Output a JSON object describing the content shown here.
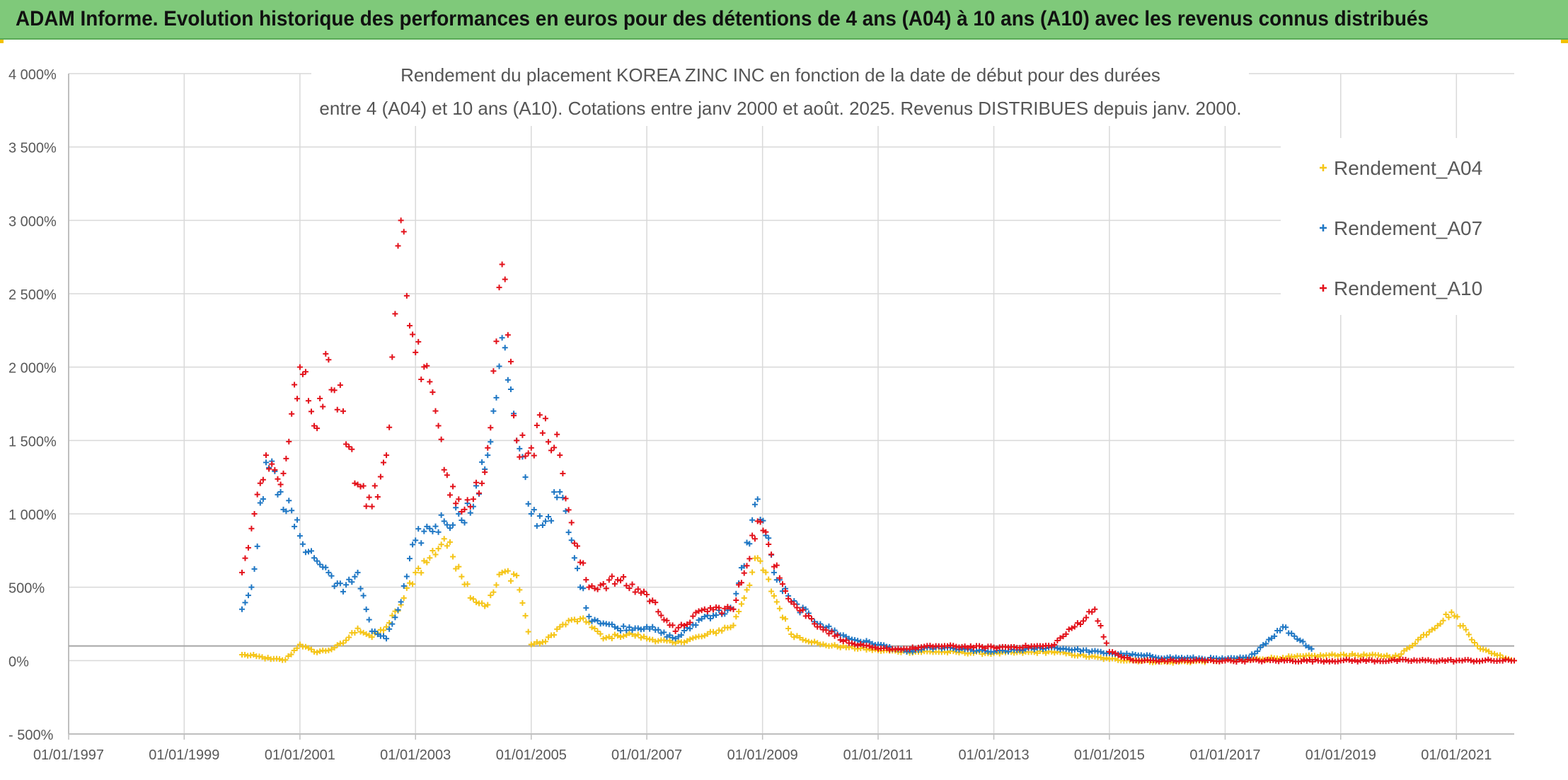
{
  "banner": {
    "title": "ADAM Informe. Evolution historique des performances en euros pour des détentions de 4 ans (A04) à 10 ans (A10) avec les revenus connus distribués"
  },
  "colors": {
    "banner_bg": "#7fc97a",
    "A04": "#f5c518",
    "A07": "#1f77c4",
    "A10": "#e3121b",
    "grid": "#d9d9d9"
  },
  "chart_data": {
    "type": "scatter",
    "title_lines": [
      "Rendement du placement KOREA ZINC INC en fonction de la date de début pour des durées",
      "entre 4 (A04) et 10 ans (A10). Cotations entre janv 2000 et août. 2025. Revenus DISTRIBUES depuis janv. 2000."
    ],
    "xlabel": "",
    "ylabel": "",
    "x_range": [
      "1997-01-01",
      "2022-01-01"
    ],
    "ylim": [
      -500,
      4000
    ],
    "y_ticks": [
      -500,
      0,
      500,
      1000,
      1500,
      2000,
      2500,
      3000,
      3500,
      4000
    ],
    "y_tick_labels": [
      "- 500%",
      "0%",
      "500%",
      "1 000%",
      "1 500%",
      "2 000%",
      "2 500%",
      "3 000%",
      "3 500%",
      "4 000%"
    ],
    "x_ticks": [
      "1997-01-01",
      "1999-01-01",
      "2001-01-01",
      "2003-01-01",
      "2005-01-01",
      "2007-01-01",
      "2009-01-01",
      "2011-01-01",
      "2013-01-01",
      "2015-01-01",
      "2017-01-01",
      "2019-01-01",
      "2021-01-01"
    ],
    "x_tick_labels": [
      "01/01/1997",
      "01/01/1999",
      "01/01/2001",
      "01/01/2003",
      "01/01/2005",
      "01/01/2007",
      "01/01/2009",
      "01/01/2011",
      "01/01/2013",
      "01/01/2015",
      "01/01/2017",
      "01/01/2019",
      "01/01/2021"
    ],
    "reference_line": 100,
    "grid": true,
    "marker": "+",
    "legend_position": "top-right",
    "series": [
      {
        "name": "Rendement_A04",
        "color": "#f5c518",
        "points": [
          [
            "2000-01-01",
            40
          ],
          [
            "2000-04-01",
            30
          ],
          [
            "2000-07-01",
            10
          ],
          [
            "2000-10-01",
            5
          ],
          [
            "2001-01-01",
            110
          ],
          [
            "2001-04-01",
            60
          ],
          [
            "2001-07-01",
            70
          ],
          [
            "2001-10-01",
            120
          ],
          [
            "2002-01-01",
            220
          ],
          [
            "2002-04-01",
            160
          ],
          [
            "2002-07-01",
            230
          ],
          [
            "2002-10-01",
            380
          ],
          [
            "2003-01-01",
            600
          ],
          [
            "2003-04-01",
            700
          ],
          [
            "2003-07-01",
            830
          ],
          [
            "2003-10-01",
            640
          ],
          [
            "2004-01-01",
            420
          ],
          [
            "2004-04-01",
            380
          ],
          [
            "2004-07-01",
            600
          ],
          [
            "2004-10-01",
            580
          ],
          [
            "2005-01-01",
            110
          ],
          [
            "2005-04-01",
            130
          ],
          [
            "2005-07-01",
            230
          ],
          [
            "2005-10-01",
            280
          ],
          [
            "2006-01-01",
            260
          ],
          [
            "2006-04-01",
            150
          ],
          [
            "2006-07-01",
            170
          ],
          [
            "2006-10-01",
            180
          ],
          [
            "2007-01-01",
            150
          ],
          [
            "2007-07-01",
            120
          ],
          [
            "2008-01-01",
            170
          ],
          [
            "2008-07-01",
            240
          ],
          [
            "2008-12-01",
            700
          ],
          [
            "2009-04-01",
            400
          ],
          [
            "2009-07-01",
            180
          ],
          [
            "2010-01-01",
            110
          ],
          [
            "2010-07-01",
            90
          ],
          [
            "2011-01-01",
            70
          ],
          [
            "2011-07-01",
            60
          ],
          [
            "2012-01-01",
            60
          ],
          [
            "2013-01-01",
            50
          ],
          [
            "2014-01-01",
            60
          ],
          [
            "2015-01-01",
            10
          ],
          [
            "2016-01-01",
            -10
          ],
          [
            "2017-01-01",
            0
          ],
          [
            "2018-01-01",
            20
          ],
          [
            "2019-01-01",
            40
          ],
          [
            "2020-01-01",
            30
          ],
          [
            "2020-12-01",
            330
          ],
          [
            "2021-06-01",
            80
          ],
          [
            "2022-01-01",
            0
          ]
        ]
      },
      {
        "name": "Rendement_A07",
        "color": "#1f77c4",
        "points": [
          [
            "2000-01-01",
            350
          ],
          [
            "2000-03-01",
            500
          ],
          [
            "2000-06-01",
            1350
          ],
          [
            "2000-09-01",
            1150
          ],
          [
            "2001-01-01",
            850
          ],
          [
            "2001-04-01",
            700
          ],
          [
            "2001-07-01",
            600
          ],
          [
            "2001-10-01",
            470
          ],
          [
            "2002-01-01",
            600
          ],
          [
            "2002-04-01",
            200
          ],
          [
            "2002-07-01",
            150
          ],
          [
            "2002-10-01",
            400
          ],
          [
            "2003-01-01",
            820
          ],
          [
            "2003-04-01",
            900
          ],
          [
            "2003-07-01",
            950
          ],
          [
            "2003-10-01",
            1000
          ],
          [
            "2004-01-01",
            1050
          ],
          [
            "2004-04-01",
            1400
          ],
          [
            "2004-07-01",
            2200
          ],
          [
            "2004-10-01",
            1500
          ],
          [
            "2005-01-01",
            1000
          ],
          [
            "2005-04-01",
            950
          ],
          [
            "2005-07-01",
            1150
          ],
          [
            "2005-10-01",
            700
          ],
          [
            "2006-01-01",
            300
          ],
          [
            "2006-07-01",
            220
          ],
          [
            "2007-01-01",
            230
          ],
          [
            "2007-07-01",
            150
          ],
          [
            "2008-01-01",
            300
          ],
          [
            "2008-07-01",
            350
          ],
          [
            "2008-12-01",
            1100
          ],
          [
            "2009-04-01",
            550
          ],
          [
            "2009-07-01",
            400
          ],
          [
            "2010-01-01",
            250
          ],
          [
            "2010-07-01",
            150
          ],
          [
            "2011-01-01",
            110
          ],
          [
            "2011-07-01",
            60
          ],
          [
            "2012-01-01",
            90
          ],
          [
            "2013-01-01",
            60
          ],
          [
            "2014-01-01",
            90
          ],
          [
            "2015-01-01",
            50
          ],
          [
            "2016-01-01",
            20
          ],
          [
            "2017-01-01",
            10
          ],
          [
            "2017-06-01",
            20
          ],
          [
            "2018-01-01",
            230
          ],
          [
            "2018-07-01",
            80
          ]
        ]
      },
      {
        "name": "Rendement_A10",
        "color": "#e3121b",
        "points": [
          [
            "2000-01-01",
            600
          ],
          [
            "2000-03-01",
            900
          ],
          [
            "2000-06-01",
            1400
          ],
          [
            "2000-09-01",
            1200
          ],
          [
            "2001-01-01",
            2000
          ],
          [
            "2001-04-01",
            1600
          ],
          [
            "2001-07-01",
            2050
          ],
          [
            "2001-10-01",
            1700
          ],
          [
            "2002-01-01",
            1200
          ],
          [
            "2002-04-01",
            1050
          ],
          [
            "2002-07-01",
            1400
          ],
          [
            "2002-10-01",
            3000
          ],
          [
            "2003-01-01",
            2100
          ],
          [
            "2003-04-01",
            1900
          ],
          [
            "2003-07-01",
            1300
          ],
          [
            "2003-10-01",
            1100
          ],
          [
            "2004-01-01",
            1100
          ],
          [
            "2004-04-01",
            1450
          ],
          [
            "2004-07-01",
            2700
          ],
          [
            "2004-10-01",
            1500
          ],
          [
            "2005-01-01",
            1450
          ],
          [
            "2005-04-01",
            1650
          ],
          [
            "2005-07-01",
            1400
          ],
          [
            "2005-10-01",
            800
          ],
          [
            "2006-01-01",
            500
          ],
          [
            "2006-07-01",
            550
          ],
          [
            "2007-01-01",
            450
          ],
          [
            "2007-07-01",
            200
          ],
          [
            "2008-01-01",
            350
          ],
          [
            "2008-07-01",
            350
          ],
          [
            "2008-12-01",
            950
          ],
          [
            "2009-04-01",
            650
          ],
          [
            "2009-07-01",
            400
          ],
          [
            "2010-01-01",
            230
          ],
          [
            "2010-07-01",
            120
          ],
          [
            "2011-01-01",
            80
          ],
          [
            "2011-07-01",
            80
          ],
          [
            "2012-01-01",
            100
          ],
          [
            "2013-01-01",
            90
          ],
          [
            "2014-01-01",
            100
          ],
          [
            "2014-10-01",
            350
          ],
          [
            "2015-01-01",
            60
          ],
          [
            "2015-06-01",
            0
          ],
          [
            "2017-01-01",
            0
          ],
          [
            "2019-01-01",
            0
          ],
          [
            "2021-01-01",
            0
          ],
          [
            "2022-01-01",
            0
          ]
        ]
      }
    ]
  }
}
